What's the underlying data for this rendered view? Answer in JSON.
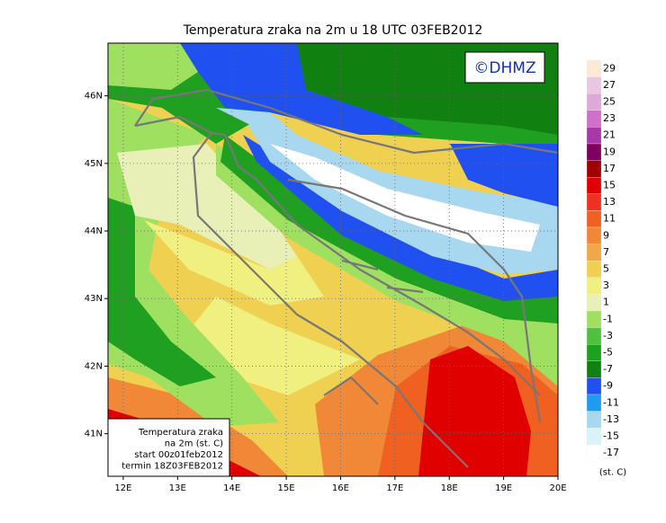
{
  "map": {
    "title": "Temperatura zraka na 2m u 18 UTC 03FEB2012",
    "copyright": "©DHMZ",
    "lon_ticks": [
      {
        "value": 12,
        "label": "12E"
      },
      {
        "value": 13,
        "label": "13E"
      },
      {
        "value": 14,
        "label": "14E"
      },
      {
        "value": 15,
        "label": "15E"
      },
      {
        "value": 16,
        "label": "16E"
      },
      {
        "value": 17,
        "label": "17E"
      },
      {
        "value": 18,
        "label": "18E"
      },
      {
        "value": 19,
        "label": "19E"
      },
      {
        "value": 20,
        "label": "20E"
      }
    ],
    "lat_ticks": [
      {
        "value": 41,
        "label": "41N"
      },
      {
        "value": 42,
        "label": "42N"
      },
      {
        "value": 43,
        "label": "43N"
      },
      {
        "value": 44,
        "label": "44N"
      },
      {
        "value": 45,
        "label": "45N"
      },
      {
        "value": 46,
        "label": "46N"
      }
    ],
    "lonlim": [
      11.72,
      20
    ],
    "latlim": [
      40.37,
      46.78
    ],
    "legend": {
      "levels": [
        29,
        27,
        25,
        23,
        21,
        19,
        17,
        15,
        13,
        11,
        9,
        7,
        5,
        3,
        1,
        -1,
        -3,
        -5,
        -7,
        -9,
        -11,
        -13,
        -15,
        -17
      ],
      "colors": [
        "#fde9d8",
        "#e8c8e0",
        "#e0a8d8",
        "#d070c8",
        "#a838a8",
        "#800060",
        "#a00000",
        "#e00000",
        "#f03020",
        "#f06020",
        "#f08838",
        "#f0a848",
        "#f0d050",
        "#f0f080",
        "#e8f0b8",
        "#a0e060",
        "#50c040",
        "#20a020",
        "#108010",
        "#2050f0",
        "#1e9cf0",
        "#a8d8f0",
        "#d8f4f8",
        "#ffffff"
      ],
      "unit": "(st. C)"
    },
    "info": [
      "Temperatura zraka",
      "na 2m (st. C)",
      "start 00z01feb2012",
      "termin 18Z03FEB2012"
    ]
  }
}
